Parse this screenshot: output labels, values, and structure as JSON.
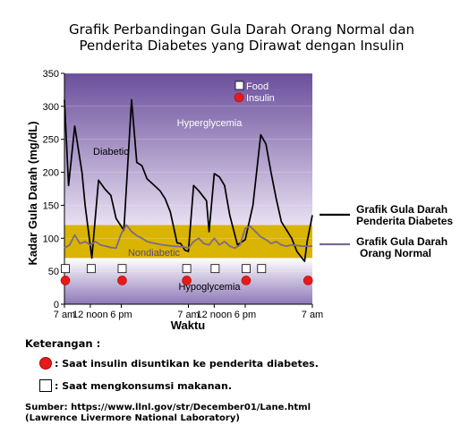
{
  "chart_data": {
    "type": "line",
    "title_line1": "Grafik Perbandingan Gula Darah Orang Normal dan",
    "title_line2": "Penderita Diabetes yang Dirawat dengan Insulin",
    "xlabel": "Waktu",
    "ylabel": "Kadar Gula Darah (mg/dL)",
    "ylim": [
      0,
      350
    ],
    "yticks": [
      0,
      50,
      100,
      150,
      200,
      250,
      300,
      350
    ],
    "xlim": [
      0,
      48
    ],
    "xticks": [
      {
        "t": 0,
        "label": "7 am"
      },
      {
        "t": 5,
        "label": "12 noon"
      },
      {
        "t": 11,
        "label": "6 pm"
      },
      {
        "t": 24,
        "label": "7 am"
      },
      {
        "t": 29,
        "label": "12 noon"
      },
      {
        "t": 35,
        "label": "6 pm"
      },
      {
        "t": 48,
        "label": "7 am"
      }
    ],
    "regions": {
      "hyperglycemia": {
        "label": "Hyperglycemia",
        "from": 120,
        "to": 350
      },
      "normal": {
        "label": "Nondiabetic",
        "from": 70,
        "to": 120,
        "color": "#d9b400"
      },
      "hypoglycemia": {
        "label": "Hypoglycemia",
        "from": 0,
        "to": 70
      }
    },
    "inline_legend": {
      "food": "Food",
      "insulin": "Insulin"
    },
    "inline_labels": {
      "diabetic": "Diabetic"
    },
    "series": [
      {
        "name": "Grafik Gula Darah Penderita Diabetes",
        "color": "#000000",
        "points": [
          [
            0,
            310
          ],
          [
            0.8,
            180
          ],
          [
            2,
            270
          ],
          [
            3.4,
            200
          ],
          [
            4,
            150
          ],
          [
            5.3,
            70
          ],
          [
            6.6,
            188
          ],
          [
            7.8,
            175
          ],
          [
            9,
            165
          ],
          [
            10,
            130
          ],
          [
            11.5,
            112
          ],
          [
            13,
            310
          ],
          [
            14,
            215
          ],
          [
            15,
            210
          ],
          [
            16,
            190
          ],
          [
            17,
            183
          ],
          [
            18.5,
            172
          ],
          [
            19.5,
            160
          ],
          [
            20.5,
            140
          ],
          [
            21.8,
            93
          ],
          [
            22.5,
            92
          ],
          [
            23.3,
            82
          ],
          [
            24,
            80
          ],
          [
            25,
            180
          ],
          [
            26,
            172
          ],
          [
            27.5,
            157
          ],
          [
            28,
            110
          ],
          [
            29,
            198
          ],
          [
            30,
            193
          ],
          [
            31,
            180
          ],
          [
            32,
            135
          ],
          [
            33.5,
            90
          ],
          [
            35,
            98
          ],
          [
            36.5,
            150
          ],
          [
            38,
            257
          ],
          [
            39,
            243
          ],
          [
            40,
            200
          ],
          [
            41,
            160
          ],
          [
            42,
            125
          ],
          [
            44,
            100
          ],
          [
            45,
            80
          ],
          [
            46.5,
            65
          ],
          [
            47,
            95
          ],
          [
            48,
            135
          ]
        ]
      },
      {
        "name": "Grafik Gula Darah Orang Normal",
        "color": "#7a6a8e",
        "points": [
          [
            0,
            85
          ],
          [
            1,
            90
          ],
          [
            2,
            105
          ],
          [
            3,
            92
          ],
          [
            4,
            95
          ],
          [
            5,
            90
          ],
          [
            6,
            95
          ],
          [
            7,
            90
          ],
          [
            8,
            88
          ],
          [
            9,
            86
          ],
          [
            10,
            85
          ],
          [
            11,
            107
          ],
          [
            12,
            120
          ],
          [
            13,
            110
          ],
          [
            14,
            104
          ],
          [
            15,
            100
          ],
          [
            16,
            95
          ],
          [
            17,
            93
          ],
          [
            19,
            90
          ],
          [
            21,
            88
          ],
          [
            23,
            87
          ],
          [
            24,
            85
          ],
          [
            25,
            95
          ],
          [
            26,
            100
          ],
          [
            27,
            92
          ],
          [
            28,
            90
          ],
          [
            29,
            100
          ],
          [
            30,
            90
          ],
          [
            31,
            95
          ],
          [
            32,
            88
          ],
          [
            33,
            85
          ],
          [
            34,
            90
          ],
          [
            35,
            115
          ],
          [
            36,
            118
          ],
          [
            37,
            110
          ],
          [
            38,
            102
          ],
          [
            39,
            98
          ],
          [
            40,
            92
          ],
          [
            41,
            95
          ],
          [
            42,
            90
          ],
          [
            43,
            88
          ],
          [
            44,
            90
          ],
          [
            46,
            88
          ],
          [
            48,
            88
          ]
        ]
      }
    ],
    "insulin_times": [
      0,
      11,
      23.5,
      35,
      47
    ],
    "food_times": [
      0,
      5,
      11,
      23.5,
      29,
      35,
      38
    ],
    "outside_legend": [
      {
        "line1": "Grafik Gula Darah",
        "line2": "Penderita Diabetes",
        "color": "#000000"
      },
      {
        "line1": "Grafik Gula Darah",
        "line2": "Orang Normal",
        "color": "#7a6a8e"
      }
    ]
  },
  "notes": {
    "heading": "Keterangan :",
    "insulin_note": ": Saat insulin disuntikan ke penderita diabetes.",
    "food_note": ": Saat mengkonsumsi makanan.",
    "source_line1": "Sumber: https://www.llnl.gov/str/December01/Lane.html",
    "source_line2": "(Lawrence Livermore National Laboratory)"
  }
}
